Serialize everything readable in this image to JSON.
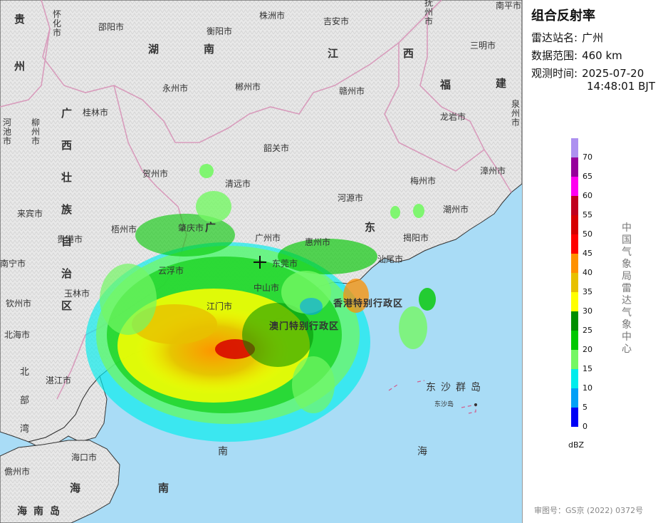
{
  "panel": {
    "title": "组合反射率",
    "station_label": "雷达站名:",
    "station_value": "广州",
    "range_label": "数据范围:",
    "range_value": "460 km",
    "time_label": "观测时间:",
    "time_date": "2025-07-20",
    "time_clock": "14:48:01 BJT",
    "unit": "dBZ",
    "vertical_text": "中国气象局雷达气象中心",
    "approval": "审图号：GS京 (2022) 0372号"
  },
  "legend": {
    "ticks": [
      "70",
      "65",
      "60",
      "55",
      "50",
      "45",
      "40",
      "35",
      "30",
      "25",
      "20",
      "15",
      "10",
      "5",
      "0"
    ],
    "colors": [
      "#ad90f0",
      "#96009b",
      "#ff00f0",
      "#c0001d",
      "#d60000",
      "#ff0000",
      "#ff9000",
      "#e7c000",
      "#ffff00",
      "#008e00",
      "#01c801",
      "#74f764",
      "#00ecec",
      "#01a0f6",
      "#0000f6"
    ]
  },
  "map": {
    "colors": {
      "sea": "#a9dcf6",
      "land": "#e9e9e9",
      "border": "#d89cbc",
      "coast": "#333333"
    },
    "provinces": [
      "贵州",
      "湖南",
      "江西",
      "福建",
      "广西壮族自治区",
      "广东",
      "海南岛"
    ],
    "seas": [
      "北部湾",
      "南海"
    ],
    "cities": [
      "怀化市",
      "邵阳市",
      "衡阳市",
      "株洲市",
      "吉安市",
      "抚州市",
      "南平市",
      "三明市",
      "永州市",
      "郴州市",
      "赣州市",
      "桂林市",
      "龙岩市",
      "泉州市",
      "柳州市",
      "河池市",
      "韶关市",
      "贺州市",
      "清远市",
      "梅州市",
      "漳州市",
      "河源市",
      "潮州市",
      "来宾市",
      "梧州市",
      "肇庆市",
      "广州市",
      "揭阳市",
      "贵港市",
      "南宁市",
      "惠州市",
      "汕尾市",
      "云浮市",
      "东莞市",
      "玉林市",
      "中山市",
      "钦州市",
      "江门市",
      "北海市",
      "湛江市",
      "海口市",
      "儋州市"
    ],
    "regions": [
      "香港特别行政区",
      "澳门特别行政区"
    ],
    "islands": [
      "东沙群岛",
      "东沙岛"
    ],
    "station_marker": "crosshair",
    "station": "广州"
  }
}
